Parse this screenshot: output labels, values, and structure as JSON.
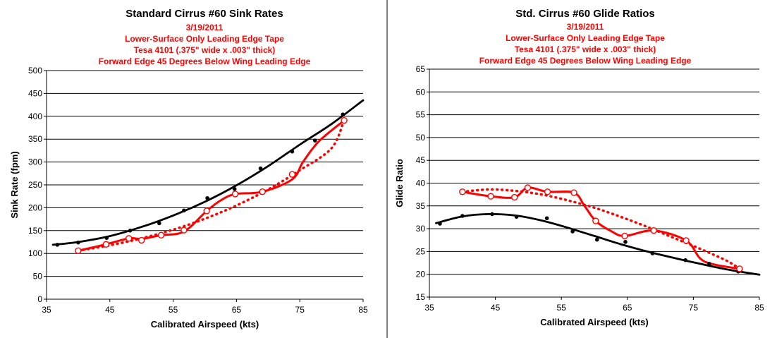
{
  "chart_data": [
    {
      "type": "scatter",
      "title": "Standard Cirrus #60 Sink Rates",
      "subtitle": [
        "3/19/2011",
        "Lower-Surface Only Leading Edge Tape",
        "Tesa 4101 (.375\" wide x .003\"  thick)",
        "Forward Edge 45 Degrees Below Wing Leading Edge"
      ],
      "xlabel": "Calibrated Airspeed (kts)",
      "ylabel": "Sink Rate (fpm)",
      "xlim": [
        35,
        85
      ],
      "ylim": [
        0,
        500
      ],
      "xticks": [
        "35",
        "45",
        "55",
        "65",
        "75",
        "85"
      ],
      "yticks": [
        "0",
        "50",
        "100",
        "150",
        "200",
        "250",
        "300",
        "350",
        "400",
        "450",
        "500"
      ],
      "grid": "horizontal",
      "colors": {
        "black": "#000000",
        "red": "#ff0000"
      },
      "series": [
        {
          "color": "#000000",
          "marker": "filled",
          "x": [
            36.7,
            40.0,
            44.5,
            48.2,
            52.8,
            56.7,
            60.4,
            64.7,
            68.8,
            73.8,
            77.4,
            81.8
          ],
          "y": [
            119,
            124,
            134,
            150,
            166,
            194,
            221,
            241,
            286,
            323,
            347,
            404
          ]
        },
        {
          "color": "#000000",
          "style": "trendline",
          "x": [
            36,
            40,
            45,
            50,
            55,
            60,
            65,
            70,
            75,
            80,
            85
          ],
          "y": [
            119,
            125,
            138,
            158,
            183,
            213,
            249,
            291,
            338,
            383,
            435
          ]
        },
        {
          "color": "#ff0000",
          "marker": "open",
          "x": [
            40.0,
            44.4,
            48.0,
            50.0,
            53.1,
            56.7,
            60.3,
            64.8,
            69.1,
            73.8,
            82.0
          ],
          "y": [
            106,
            120,
            133,
            129,
            140,
            151,
            193,
            230,
            235,
            273,
            391
          ]
        },
        {
          "color": "#ff0000",
          "style": "smoothed",
          "x": [
            40.0,
            44.4,
            48.0,
            50.0,
            53.1,
            56.7,
            60.3,
            62.5,
            64.8,
            69.1,
            73.8,
            75.5,
            78.0,
            82.0
          ],
          "y": [
            106,
            120,
            133,
            132,
            140,
            148,
            193,
            216,
            230,
            235,
            262,
            300,
            345,
            391
          ]
        },
        {
          "color": "#ff0000",
          "style": "dotted",
          "x": [
            40,
            45,
            50,
            55,
            60,
            65,
            70,
            75,
            80,
            82
          ],
          "y": [
            106,
            118,
            133,
            152,
            176,
            205,
            240,
            282,
            330,
            392
          ]
        }
      ]
    },
    {
      "type": "scatter",
      "title": "Std. Cirrus #60 Glide Ratios",
      "subtitle": [
        "3/19/2011",
        "Lower-Surface Only Leading Edge Tape",
        "Tesa 4101 (.375\" wide x .003\" thick)",
        "Forward Edge 45 Degrees Below Wing Leading Edge"
      ],
      "xlabel": "Calibrated Airspeed (kts)",
      "ylabel": "Glide Ratio",
      "xlim": [
        35,
        85
      ],
      "ylim": [
        15,
        65
      ],
      "xticks": [
        "35",
        "45",
        "55",
        "65",
        "75",
        "85"
      ],
      "yticks": [
        "15",
        "20",
        "25",
        "30",
        "35",
        "40",
        "45",
        "50",
        "55",
        "60",
        "65"
      ],
      "grid": "horizontal",
      "colors": {
        "black": "#000000",
        "red": "#ff0000"
      },
      "series": [
        {
          "color": "#000000",
          "marker": "filled",
          "x": [
            36.6,
            40.0,
            44.5,
            48.2,
            52.8,
            56.7,
            60.4,
            64.7,
            68.8,
            73.8,
            77.4,
            81.8
          ],
          "y": [
            31.1,
            32.8,
            33.2,
            32.6,
            32.3,
            29.4,
            27.6,
            27.1,
            24.6,
            23.1,
            22.3,
            20.6
          ]
        },
        {
          "color": "#000000",
          "style": "trendline",
          "x": [
            36,
            40,
            44,
            48,
            52,
            56,
            60,
            64,
            68,
            72,
            76,
            80,
            85
          ],
          "y": [
            31.2,
            32.7,
            33.2,
            32.9,
            31.8,
            30.2,
            28.4,
            26.6,
            25.0,
            23.6,
            22.3,
            21.1,
            19.9
          ]
        },
        {
          "color": "#ff0000",
          "marker": "open",
          "x": [
            40.0,
            44.3,
            47.9,
            49.9,
            52.9,
            56.9,
            60.2,
            64.6,
            69.0,
            73.9,
            82.0
          ],
          "y": [
            38.1,
            37.1,
            36.9,
            39.0,
            38.1,
            37.9,
            31.7,
            28.4,
            29.6,
            27.4,
            21.2
          ]
        },
        {
          "color": "#ff0000",
          "style": "smoothed",
          "x": [
            40.0,
            44.3,
            47.9,
            49.9,
            52.9,
            56.9,
            58.5,
            60.2,
            62.5,
            64.6,
            69.0,
            73.9,
            76.0,
            78.0,
            82.0
          ],
          "y": [
            38.1,
            37.1,
            36.9,
            39.0,
            38.1,
            37.9,
            35.0,
            31.7,
            29.5,
            28.4,
            29.6,
            27.4,
            23.5,
            22.2,
            21.2
          ]
        },
        {
          "color": "#ff0000",
          "style": "dotted",
          "x": [
            40,
            44,
            48,
            52,
            56,
            60,
            64,
            68,
            72,
            76,
            80,
            82
          ],
          "y": [
            38.1,
            38.6,
            38.3,
            37.5,
            36.2,
            34.6,
            32.6,
            30.4,
            28.0,
            25.6,
            23.0,
            21.2
          ]
        }
      ]
    }
  ]
}
